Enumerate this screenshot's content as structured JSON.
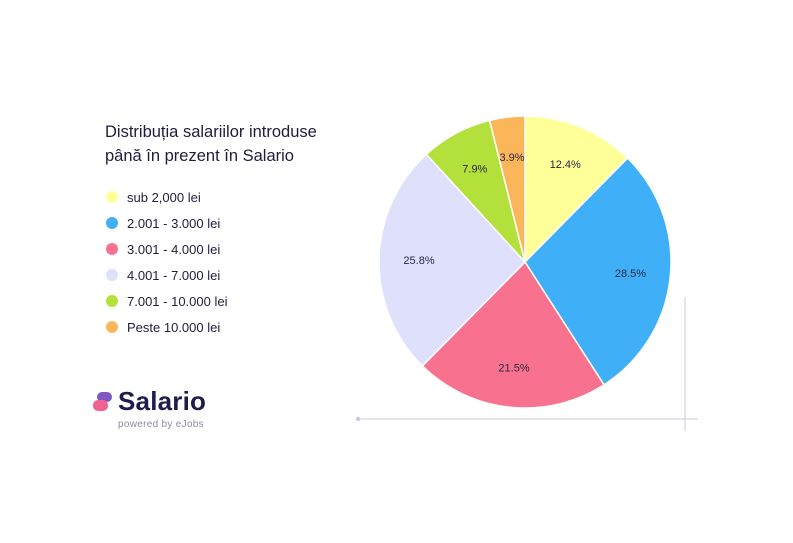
{
  "chart_data": {
    "type": "pie",
    "title_lines": [
      "Distribuția salariilor introduse",
      "până în prezent în Salario"
    ],
    "slices": [
      {
        "label": "sub 2,000 lei",
        "value": 12.4,
        "display": "12.4%",
        "color": "#ffff99"
      },
      {
        "label": "2.001 - 3.000 lei",
        "value": 28.5,
        "display": "28.5%",
        "color": "#3fb0f8"
      },
      {
        "label": "3.001 - 4.000 lei",
        "value": 21.5,
        "display": "21.5%",
        "color": "#f8718f"
      },
      {
        "label": "4.001 - 7.000 lei",
        "value": 25.8,
        "display": "25.8%",
        "color": "#dfe0fb"
      },
      {
        "label": "7.001 - 10.000 lei",
        "value": 7.9,
        "display": "7.9%",
        "color": "#b3e03a"
      },
      {
        "label": "Peste 10.000 lei",
        "value": 3.9,
        "display": "3.9%",
        "color": "#fbb65a"
      }
    ],
    "legend_position": "left"
  },
  "brand": {
    "name": "Salario",
    "tagline": "powered by eJobs",
    "logo_colors": [
      "#f06292",
      "#7e57c2"
    ]
  },
  "decor_line_color": "#c9c9e0"
}
